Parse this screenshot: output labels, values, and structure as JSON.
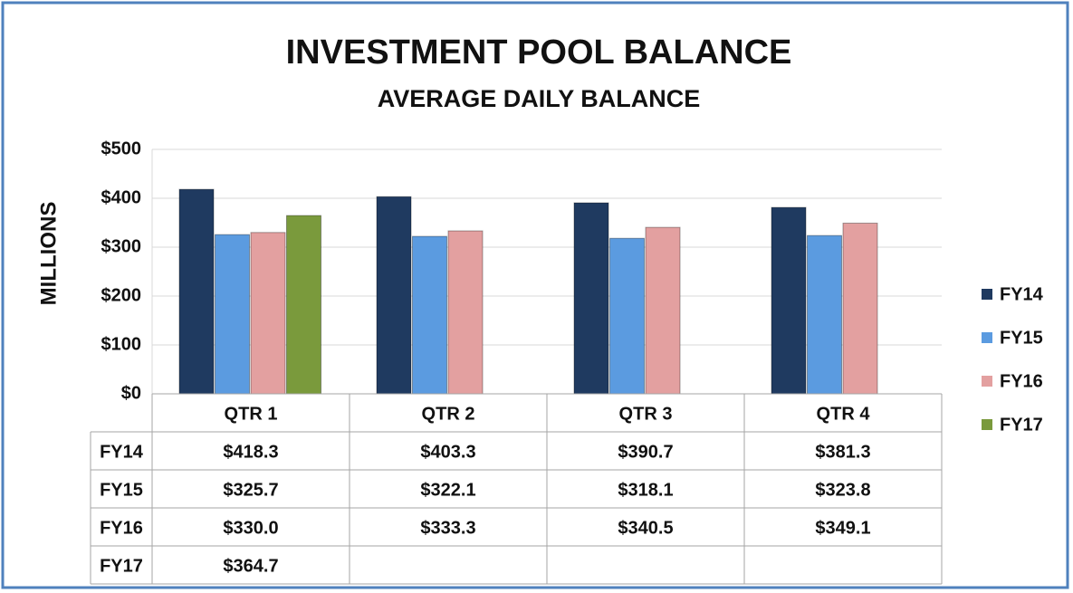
{
  "chart_data": {
    "type": "bar",
    "title": "INVESTMENT POOL BALANCE",
    "subtitle": "AVERAGE DAILY BALANCE",
    "y_label": "MILLIONS",
    "categories": [
      "QTR 1",
      "QTR 2",
      "QTR 3",
      "QTR 4"
    ],
    "series": [
      {
        "name": "FY14",
        "color": "#1f3a60",
        "values": [
          418.3,
          403.3,
          390.7,
          381.3
        ],
        "value_labels": [
          "$418.3",
          "$403.3",
          "$390.7",
          "$381.3"
        ]
      },
      {
        "name": "FY15",
        "color": "#5b9be0",
        "values": [
          325.7,
          322.1,
          318.1,
          323.8
        ],
        "value_labels": [
          "$325.7",
          "$322.1",
          "$318.1",
          "$323.8"
        ]
      },
      {
        "name": "FY16",
        "color": "#e3a0a0",
        "values": [
          330.0,
          333.3,
          340.5,
          349.1
        ],
        "value_labels": [
          "$330.0",
          "$333.3",
          "$340.5",
          "$349.1"
        ]
      },
      {
        "name": "FY17",
        "color": "#7a9a3c",
        "values": [
          364.7,
          null,
          null,
          null
        ],
        "value_labels": [
          "$364.7",
          null,
          null,
          null
        ]
      }
    ],
    "ylim": [
      0,
      500
    ],
    "yticks": [
      {
        "value": 0,
        "label": "$0"
      },
      {
        "value": 100,
        "label": "$100"
      },
      {
        "value": 200,
        "label": "$200"
      },
      {
        "value": 300,
        "label": "$300"
      },
      {
        "value": 400,
        "label": "$400"
      },
      {
        "value": 500,
        "label": "$500"
      }
    ],
    "grid": true,
    "legend": "right"
  }
}
